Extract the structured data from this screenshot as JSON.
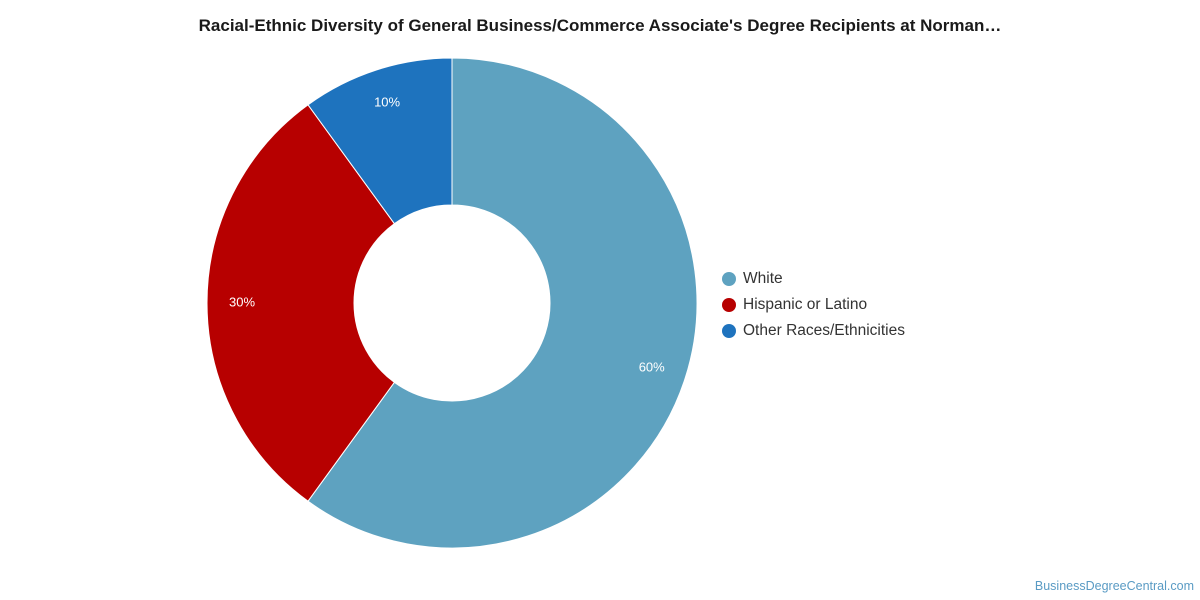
{
  "chart_data": {
    "type": "pie",
    "title": "Racial-Ethnic Diversity of General Business/Commerce Associate's Degree Recipients at Norman…",
    "donut": true,
    "categories": [
      "White",
      "Hispanic or Latino",
      "Other Races/Ethnicities"
    ],
    "values": [
      60,
      30,
      10
    ],
    "labels": [
      "60%",
      "30%",
      "10%"
    ],
    "colors": [
      "#5ea2c0",
      "#b70000",
      "#1e73be"
    ],
    "legend_position": "right"
  },
  "watermark": "BusinessDegreeCentral.com"
}
